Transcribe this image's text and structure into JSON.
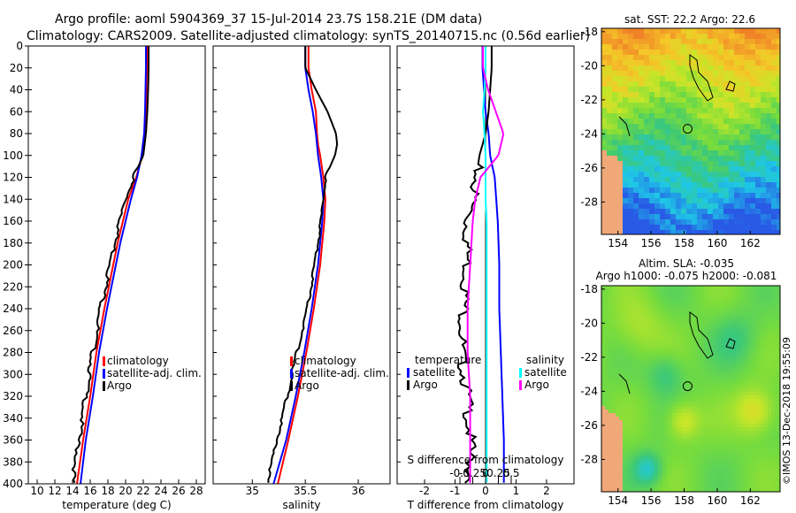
{
  "header": {
    "line1": "Argo profile: aoml 5904369_37 15-Jul-2014 23.7S 158.21E (DM data)",
    "line2": "Climatology: CARS2009. Satellite-adjusted climatology: synTS_20140715.nc (0.56d earlier)"
  },
  "colors": {
    "climatology": "#ff0000",
    "satellite": "#0000ff",
    "argo": "#000000",
    "salinity_satellite": "#00ffff",
    "salinity_argo": "#ff00ff",
    "land": "#f0a878"
  },
  "chart_data": [
    {
      "type": "line",
      "id": "temperature",
      "xlabel": "temperature (deg C)",
      "ylabel": "",
      "xlim": [
        9,
        29
      ],
      "ylim": [
        400,
        0
      ],
      "xticks": [
        10,
        12,
        14,
        16,
        18,
        20,
        22,
        24,
        26,
        28
      ],
      "xtick_labels": [
        "10",
        "12",
        "14",
        "16",
        "18",
        "20",
        "22",
        "24",
        "26",
        "28"
      ],
      "yticks": [
        0,
        20,
        40,
        60,
        80,
        100,
        120,
        140,
        160,
        180,
        200,
        220,
        240,
        260,
        280,
        300,
        320,
        340,
        360,
        380,
        400
      ],
      "ytick_labels": [
        "0",
        "20",
        "40",
        "60",
        "80",
        "100",
        "120",
        "140",
        "160",
        "180",
        "200",
        "220",
        "240",
        "260",
        "280",
        "300",
        "320",
        "340",
        "360",
        "380",
        "400"
      ],
      "legend": {
        "position": "middle-right",
        "entries": [
          "climatology",
          "satellite-adj. clim.",
          "Argo"
        ]
      },
      "depth": [
        0,
        20,
        40,
        60,
        80,
        100,
        120,
        140,
        160,
        180,
        200,
        240,
        280,
        320,
        360,
        400
      ],
      "series": [
        {
          "name": "climatology",
          "color": "#ff0000",
          "values": [
            22.4,
            22.4,
            22.35,
            22.3,
            22.2,
            21.9,
            21.2,
            20.3,
            19.7,
            19.1,
            18.6,
            17.6,
            16.7,
            16.0,
            15.2,
            14.5
          ]
        },
        {
          "name": "satellite-adj. clim.",
          "color": "#0000ff",
          "values": [
            22.3,
            22.3,
            22.25,
            22.2,
            22.1,
            21.8,
            21.3,
            20.6,
            20.0,
            19.4,
            18.9,
            17.9,
            17.0,
            16.3,
            15.5,
            14.9
          ]
        },
        {
          "name": "Argo",
          "color": "#000000",
          "values": [
            22.6,
            22.6,
            22.55,
            22.45,
            22.3,
            22.0,
            20.9,
            20.0,
            19.4,
            18.8,
            18.3,
            17.2,
            16.3,
            15.5,
            14.7,
            14.0
          ]
        }
      ]
    },
    {
      "type": "line",
      "id": "salinity",
      "xlabel": "salinity",
      "ylabel": "",
      "xlim": [
        34.63,
        36.3
      ],
      "ylim": [
        400,
        0
      ],
      "xticks": [
        35,
        35.5,
        36
      ],
      "xtick_labels": [
        "35",
        "35.5",
        "36"
      ],
      "legend": {
        "position": "middle-right",
        "entries": [
          "climatology",
          "satellite-adj. clim.",
          "Argo"
        ]
      },
      "depth": [
        0,
        20,
        40,
        60,
        80,
        90,
        100,
        120,
        140,
        160,
        200,
        240,
        280,
        320,
        360,
        400
      ],
      "series": [
        {
          "name": "climatology",
          "color": "#ff0000",
          "values": [
            35.53,
            35.53,
            35.56,
            35.6,
            35.61,
            35.62,
            35.64,
            35.67,
            35.69,
            35.68,
            35.64,
            35.58,
            35.51,
            35.43,
            35.34,
            35.24
          ]
        },
        {
          "name": "satellite-adj. clim.",
          "color": "#0000ff",
          "values": [
            35.5,
            35.5,
            35.53,
            35.57,
            35.6,
            35.61,
            35.62,
            35.65,
            35.67,
            35.66,
            35.62,
            35.56,
            35.49,
            35.41,
            35.32,
            35.2
          ]
        },
        {
          "name": "Argo",
          "color": "#000000",
          "values": [
            35.5,
            35.5,
            35.6,
            35.71,
            35.79,
            35.8,
            35.78,
            35.69,
            35.67,
            35.65,
            35.59,
            35.52,
            35.42,
            35.33,
            35.23,
            35.14
          ]
        }
      ]
    },
    {
      "type": "line",
      "id": "difference",
      "xlabel": "T difference from climatology",
      "title_inner": "S difference from climatology",
      "xlim": [
        -2.9,
        2.9
      ],
      "ylim": [
        400,
        0
      ],
      "xticks": [
        -2,
        -1,
        0,
        1,
        2
      ],
      "xtick_labels": [
        "-2",
        "-1",
        "0",
        "1",
        "2"
      ],
      "sticks": [
        -0.5,
        -0.25,
        0,
        0.25,
        0.5
      ],
      "stick_labels": [
        "-0.5",
        "-0.25",
        "0",
        "0.25",
        "0.5"
      ],
      "legend": {
        "position": "middle",
        "temperature_title": "temperature",
        "salinity_title": "salinity",
        "temperature_entries": [
          "satellite",
          "Argo"
        ],
        "salinity_entries": [
          "satellite",
          "Argo"
        ]
      },
      "depth": [
        0,
        20,
        40,
        60,
        80,
        100,
        120,
        140,
        160,
        200,
        240,
        280,
        320,
        360,
        400
      ],
      "series": [
        {
          "name": "T satellite",
          "color": "#0000ff",
          "values": [
            -0.1,
            -0.1,
            -0.05,
            0.0,
            0.1,
            0.15,
            0.3,
            0.35,
            0.4,
            0.45,
            0.45,
            0.5,
            0.55,
            0.6,
            0.6
          ]
        },
        {
          "name": "T Argo",
          "color": "#000000",
          "values": [
            0.2,
            0.2,
            0.15,
            0.1,
            0.0,
            -0.2,
            -0.3,
            -0.4,
            -0.6,
            -0.6,
            -0.7,
            -0.8,
            -0.6,
            -0.5,
            -0.5
          ]
        },
        {
          "name": "S satellite",
          "color": "#00ffff",
          "values": [
            0.0,
            0.0,
            -0.02,
            -0.05,
            -0.02,
            0.0,
            0.0,
            0.0,
            0.02,
            0.02,
            0.02,
            0.02,
            0.02,
            0.02,
            0.02
          ]
        },
        {
          "name": "S Argo",
          "color": "#ff00ff",
          "values": [
            -0.05,
            -0.05,
            0.05,
            0.2,
            0.35,
            0.25,
            -0.1,
            -0.2,
            -0.25,
            -0.3,
            -0.35,
            -0.35,
            -0.3,
            -0.3,
            -0.3
          ]
        }
      ]
    },
    {
      "type": "heatmap",
      "id": "sst-map",
      "title": "sat. SST: 22.2 Argo: 22.6",
      "xlim": [
        153,
        163.8
      ],
      "ylim": [
        -29.9,
        -17.8
      ],
      "xticks": [
        154,
        156,
        158,
        160,
        162
      ],
      "xtick_labels": [
        "154",
        "156",
        "158",
        "160",
        "162"
      ],
      "yticks": [
        -18,
        -20,
        -22,
        -24,
        -26,
        -28
      ],
      "ytick_labels": [
        "-18",
        "-20",
        "-22",
        "-24",
        "-26",
        "-28"
      ],
      "marker": {
        "lon": 158.21,
        "lat": -23.7
      }
    },
    {
      "type": "heatmap",
      "id": "sla-map",
      "title": "Altim. SLA: -0.035",
      "subtitle": "Argo h1000: -0.075 h2000: -0.081",
      "xlim": [
        153,
        163.8
      ],
      "ylim": [
        -29.9,
        -17.8
      ],
      "xticks": [
        154,
        156,
        158,
        160,
        162
      ],
      "xtick_labels": [
        "154",
        "156",
        "158",
        "160",
        "162"
      ],
      "yticks": [
        -18,
        -20,
        -22,
        -24,
        -26,
        -28
      ],
      "ytick_labels": [
        "-18",
        "-20",
        "-22",
        "-24",
        "-26",
        "-28"
      ],
      "marker": {
        "lon": 158.21,
        "lat": -23.7
      }
    }
  ],
  "footer": {
    "credit": "©IMOS 13-Dec-2018 19:55:09"
  }
}
